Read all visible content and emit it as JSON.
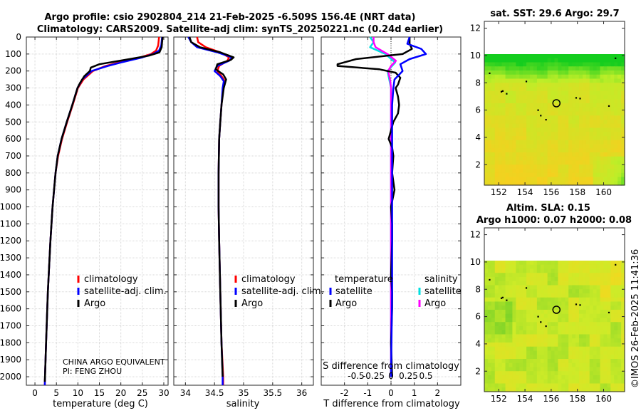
{
  "title": {
    "line1": "Argo profile: csio 2902804_214 21-Feb-2025 -6.509S 156.4E (NRT data)",
    "line2": "Climatology: CARS2009. Satellite-adj clim: synTS_20250221.nc (0.24d earlier)"
  },
  "depth_ticks": [
    0,
    100,
    200,
    300,
    400,
    500,
    600,
    700,
    800,
    900,
    1000,
    1100,
    1200,
    1300,
    1400,
    1500,
    1600,
    1700,
    1800,
    1900,
    2000
  ],
  "colors": {
    "climatology": "#ff0000",
    "satellite": "#0000ff",
    "argo": "#000000",
    "sat_salinity": "#00e0e0",
    "argo_salinity": "#ff00ff"
  },
  "chart_data": [
    {
      "type": "line",
      "name": "temperature",
      "xlabel": "temperature (deg C)",
      "ylabel": "depth",
      "xlim": [
        -2,
        31
      ],
      "ylim": [
        2050,
        0
      ],
      "xticks": [
        0,
        5,
        10,
        15,
        20,
        25,
        30
      ],
      "legend": [
        "climatology",
        "satellite-adj. clim.",
        "Argo"
      ],
      "annotation": [
        "CHINA ARGO EQUIVALENT",
        "PI: FENG ZHOU"
      ],
      "series": [
        {
          "name": "climatology",
          "depth": [
            0,
            50,
            80,
            100,
            120,
            150,
            170,
            200,
            250,
            300,
            400,
            500,
            600,
            700,
            800,
            1000,
            1200,
            1500,
            1800,
            2000,
            2050
          ],
          "values": [
            28.9,
            28.7,
            28.2,
            27.0,
            24.5,
            19.5,
            16.5,
            13.5,
            11.3,
            10.0,
            8.8,
            7.5,
            6.3,
            5.4,
            4.8,
            4.1,
            3.6,
            3.0,
            2.6,
            2.35,
            2.3
          ]
        },
        {
          "name": "satellite-adj. clim.",
          "depth": [
            0,
            50,
            80,
            100,
            120,
            150,
            170,
            200,
            250,
            300,
            400,
            500,
            600,
            700,
            800,
            1000,
            1200,
            1500,
            1800,
            2000,
            2050
          ],
          "values": [
            29.6,
            29.4,
            28.9,
            27.5,
            25.0,
            20.0,
            17.0,
            13.2,
            11.0,
            9.9,
            8.7,
            7.4,
            6.2,
            5.3,
            4.8,
            4.1,
            3.6,
            3.0,
            2.6,
            2.35,
            2.3
          ]
        },
        {
          "name": "Argo",
          "depth": [
            0,
            60,
            90,
            110,
            130,
            160,
            180,
            200,
            230,
            270,
            300,
            400,
            500,
            600,
            700,
            800,
            1000,
            1200,
            1500,
            1800,
            2000,
            2030
          ],
          "values": [
            29.7,
            29.5,
            29.0,
            26.5,
            22.0,
            15.0,
            13.0,
            12.8,
            11.5,
            10.5,
            9.9,
            8.7,
            7.4,
            6.2,
            5.3,
            4.8,
            4.1,
            3.6,
            3.0,
            2.6,
            2.35,
            2.3
          ]
        }
      ]
    },
    {
      "type": "line",
      "name": "salinity",
      "xlabel": "salinity",
      "xlim": [
        33.8,
        36.2
      ],
      "ylim": [
        2050,
        0
      ],
      "xticks": [
        34,
        34.5,
        35,
        35.5,
        36
      ],
      "xticklabels": [
        "34",
        "34.5",
        "35",
        "35.5",
        "36"
      ],
      "legend": [
        "climatology",
        "satellite-adj. clim.",
        "Argo"
      ],
      "series": [
        {
          "name": "climatology",
          "depth": [
            0,
            30,
            60,
            90,
            120,
            140,
            170,
            200,
            230,
            260,
            300,
            400,
            500,
            600,
            800,
            1000,
            1200,
            1500,
            1800,
            2000,
            2050
          ],
          "values": [
            34.2,
            34.22,
            34.35,
            34.6,
            34.75,
            34.72,
            34.58,
            34.55,
            34.62,
            34.68,
            34.65,
            34.62,
            34.6,
            34.58,
            34.57,
            34.57,
            34.58,
            34.6,
            34.62,
            34.65,
            34.65
          ]
        },
        {
          "name": "satellite-adj. clim.",
          "depth": [
            0,
            30,
            60,
            90,
            120,
            140,
            170,
            200,
            230,
            260,
            300,
            400,
            500,
            600,
            800,
            1000,
            1200,
            1500,
            1800,
            2000,
            2050
          ],
          "values": [
            34.05,
            34.1,
            34.2,
            34.55,
            34.8,
            34.75,
            34.55,
            34.5,
            34.6,
            34.66,
            34.64,
            34.62,
            34.6,
            34.58,
            34.57,
            34.57,
            34.58,
            34.6,
            34.62,
            34.64,
            34.64
          ]
        },
        {
          "name": "Argo",
          "depth": [
            0,
            30,
            60,
            90,
            120,
            135,
            160,
            190,
            220,
            250,
            300,
            400,
            500,
            600,
            800,
            1000,
            1200,
            1500,
            1800,
            2000
          ],
          "values": [
            34.07,
            34.1,
            34.25,
            34.6,
            34.83,
            34.78,
            34.55,
            34.52,
            34.65,
            34.7,
            34.66,
            34.62,
            34.6,
            34.58,
            34.57,
            34.57,
            34.58,
            34.6,
            34.62,
            34.64
          ]
        }
      ]
    },
    {
      "type": "line",
      "name": "difference",
      "xlabel": "T difference from climatology",
      "top_xlabel": "S difference from climatology",
      "xlim": [
        -3,
        3
      ],
      "ylim": [
        2050,
        0
      ],
      "xticks": [
        -2,
        -1,
        0,
        1,
        2
      ],
      "xticklabels": [
        "-2",
        "-1",
        "0",
        "1",
        "2"
      ],
      "s_xticks": [
        -0.5,
        -0.25,
        0,
        0.25,
        0.5
      ],
      "s_xticklabels": [
        "-0.5",
        "-0.25",
        "0",
        "0.25",
        "0.5"
      ],
      "legend_left": {
        "title": "temperature",
        "items": [
          "satellite",
          "Argo"
        ]
      },
      "legend_right": {
        "title": "salinity",
        "items": [
          "satellite",
          "Argo"
        ]
      },
      "series": [
        {
          "name": "T satellite",
          "depth": [
            0,
            40,
            70,
            100,
            130,
            160,
            200,
            250,
            300,
            400,
            600,
            800,
            1000,
            1500,
            2000
          ],
          "values": [
            0.8,
            0.7,
            1.3,
            1.5,
            0.8,
            0.4,
            0.5,
            0.15,
            0.1,
            0.05,
            0.05,
            0.05,
            0.05,
            0.05,
            0.0
          ]
        },
        {
          "name": "T Argo",
          "depth": [
            0,
            40,
            70,
            100,
            130,
            160,
            170,
            190,
            210,
            240,
            280,
            300,
            350,
            400,
            450,
            500,
            550,
            600,
            650,
            700,
            800,
            900,
            1000,
            1100,
            1200,
            1400,
            1500,
            1600,
            1800,
            2000
          ],
          "values": [
            0.8,
            0.8,
            0.9,
            0.5,
            -1.5,
            -2.3,
            -2.3,
            -0.5,
            0.2,
            0.4,
            0.3,
            0.2,
            0.3,
            0.35,
            0.3,
            0.1,
            0.0,
            -0.1,
            0.05,
            0.1,
            0.05,
            0.15,
            0.0,
            0.05,
            0.05,
            0.0,
            0.05,
            0.05,
            0.0,
            0.05
          ]
        },
        {
          "name": "S satellite",
          "depth": [
            0,
            30,
            60,
            100,
            150,
            200,
            260,
            300,
            500,
            1000,
            2000
          ],
          "values": [
            -0.3,
            -0.25,
            -0.3,
            -0.08,
            0.06,
            -0.05,
            -0.02,
            0.0,
            0.0,
            0.0,
            0.0
          ]
        },
        {
          "name": "S Argo",
          "depth": [
            0,
            30,
            60,
            100,
            140,
            170,
            200,
            260,
            300,
            500,
            1000,
            2000
          ],
          "values": [
            -0.25,
            -0.25,
            -0.22,
            -0.05,
            0.07,
            0.0,
            -0.04,
            -0.01,
            0.0,
            0.0,
            0.0,
            0.0
          ]
        }
      ]
    },
    {
      "type": "heatmap",
      "name": "sst_map",
      "title": "sat. SST: 29.6 Argo: 29.7",
      "xlim": [
        150.9,
        161.6
      ],
      "ylim": [
        0.5,
        12.5
      ],
      "xticks": [
        152,
        154,
        156,
        158,
        160
      ],
      "yticks": [
        2,
        4,
        6,
        8,
        10,
        12
      ],
      "data_top_lat": 10.1,
      "float_position": [
        156.4,
        6.5
      ]
    },
    {
      "type": "heatmap",
      "name": "sla_map",
      "title_line1": "Altim. SLA: 0.15",
      "title_line2": "Argo h1000: 0.07 h2000: 0.08",
      "xlim": [
        150.9,
        161.6
      ],
      "ylim": [
        0.5,
        12.5
      ],
      "xticks": [
        152,
        154,
        156,
        158,
        160
      ],
      "yticks": [
        2,
        4,
        6,
        8,
        10,
        12
      ],
      "data_top_lat": 10.1,
      "float_position": [
        156.4,
        6.5
      ]
    }
  ],
  "footer": {
    "stamp": "©IMOS 26-Feb-2025 11:41:36"
  }
}
